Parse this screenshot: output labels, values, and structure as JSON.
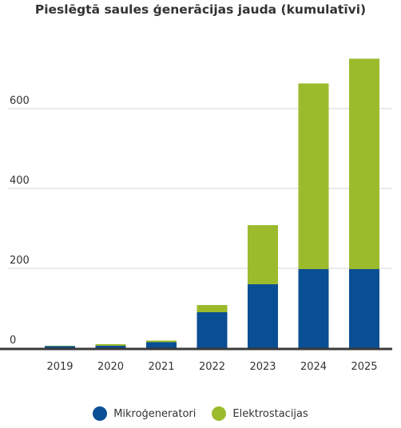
{
  "chart_data": {
    "type": "bar",
    "stacked": true,
    "title": "Pieslēgtā saules ģenerācijas jauda (kumulatīvi)",
    "xlabel": "",
    "ylabel": "",
    "categories": [
      "2019",
      "2020",
      "2021",
      "2022",
      "2023",
      "2024",
      "2025"
    ],
    "series": [
      {
        "name": "Mikroģeneratori",
        "color": "#0a4f94",
        "values": [
          5,
          6,
          15,
          90,
          160,
          198,
          198
        ]
      },
      {
        "name": "Elektrostacijas",
        "color": "#9bbb2d",
        "values": [
          1,
          4,
          4,
          18,
          148,
          465,
          527
        ]
      }
    ],
    "yticks": [
      0,
      200,
      400,
      600
    ],
    "ylim": [
      0,
      740
    ],
    "grid": true,
    "legend_position": "bottom"
  }
}
